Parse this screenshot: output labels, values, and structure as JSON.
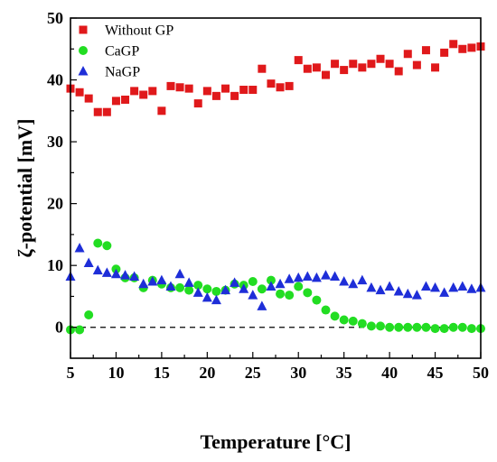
{
  "chart_data": {
    "type": "scatter",
    "xlabel": "Temperature [°C]",
    "ylabel": "ζ-potential [mV]",
    "xlim": [
      5,
      50
    ],
    "ylim": [
      -5,
      50
    ],
    "xticks": [
      5,
      10,
      15,
      20,
      25,
      30,
      35,
      40,
      45,
      50
    ],
    "yticks": [
      0,
      10,
      20,
      30,
      40,
      50
    ],
    "reference_line": {
      "y": 0,
      "style": "dashed"
    },
    "grid": false,
    "legend_position": "top-left",
    "series": [
      {
        "name": "Without GP",
        "marker": "square",
        "color": "#e0191b",
        "x": [
          5,
          6,
          7,
          8,
          9,
          10,
          11,
          12,
          13,
          14,
          15,
          16,
          17,
          18,
          19,
          20,
          21,
          22,
          23,
          24,
          25,
          26,
          27,
          28,
          29,
          30,
          31,
          32,
          33,
          34,
          35,
          36,
          37,
          38,
          39,
          40,
          41,
          42,
          43,
          44,
          45,
          46,
          47,
          48,
          49,
          50
        ],
        "y": [
          38.6,
          38.0,
          37.0,
          34.8,
          34.8,
          36.6,
          36.8,
          38.2,
          37.6,
          38.2,
          35.0,
          39.0,
          38.8,
          38.6,
          36.2,
          38.2,
          37.4,
          38.6,
          37.4,
          38.4,
          38.4,
          41.8,
          39.4,
          38.8,
          39.0,
          43.2,
          41.8,
          42.0,
          40.8,
          42.6,
          41.6,
          42.6,
          42.0,
          42.6,
          43.4,
          42.6,
          41.4,
          44.2,
          42.4,
          44.8,
          42.0,
          44.4,
          45.8,
          45.0,
          45.2,
          45.4
        ]
      },
      {
        "name": "CaGP",
        "marker": "circle",
        "color": "#22dd22",
        "x": [
          5,
          6,
          7,
          8,
          9,
          10,
          11,
          12,
          13,
          14,
          15,
          16,
          17,
          18,
          19,
          20,
          21,
          22,
          23,
          24,
          25,
          26,
          27,
          28,
          29,
          30,
          31,
          32,
          33,
          34,
          35,
          36,
          37,
          38,
          39,
          40,
          41,
          42,
          43,
          44,
          45,
          46,
          47,
          48,
          49,
          50
        ],
        "y": [
          -0.4,
          -0.4,
          2.0,
          13.6,
          13.2,
          9.4,
          8.0,
          8.0,
          6.4,
          7.6,
          7.0,
          6.4,
          6.4,
          6.0,
          6.8,
          6.2,
          5.8,
          6.0,
          7.0,
          6.8,
          7.4,
          6.2,
          7.6,
          5.4,
          5.2,
          6.6,
          5.6,
          4.4,
          2.8,
          1.8,
          1.2,
          1.0,
          0.6,
          0.2,
          0.2,
          0.0,
          0.0,
          0.0,
          0.0,
          0.0,
          -0.2,
          -0.2,
          0.0,
          0.0,
          -0.2,
          -0.2
        ]
      },
      {
        "name": "NaGP",
        "marker": "triangle",
        "color": "#1e2ed8",
        "x": [
          5,
          6,
          7,
          8,
          9,
          10,
          11,
          12,
          13,
          14,
          15,
          16,
          17,
          18,
          19,
          20,
          21,
          22,
          23,
          24,
          25,
          26,
          27,
          28,
          29,
          30,
          31,
          32,
          33,
          34,
          35,
          36,
          37,
          38,
          39,
          40,
          41,
          42,
          43,
          44,
          45,
          46,
          47,
          48,
          49,
          50
        ],
        "y": [
          8.2,
          12.8,
          10.4,
          9.2,
          8.8,
          8.6,
          8.4,
          8.2,
          7.0,
          7.4,
          7.6,
          6.6,
          8.6,
          7.2,
          5.6,
          4.8,
          4.4,
          6.0,
          7.2,
          6.2,
          5.2,
          3.4,
          6.6,
          7.0,
          7.8,
          8.0,
          8.2,
          8.0,
          8.4,
          8.2,
          7.4,
          7.0,
          7.6,
          6.4,
          6.0,
          6.6,
          5.8,
          5.4,
          5.2,
          6.6,
          6.4,
          5.6,
          6.4,
          6.6,
          6.2,
          6.4
        ]
      }
    ]
  }
}
